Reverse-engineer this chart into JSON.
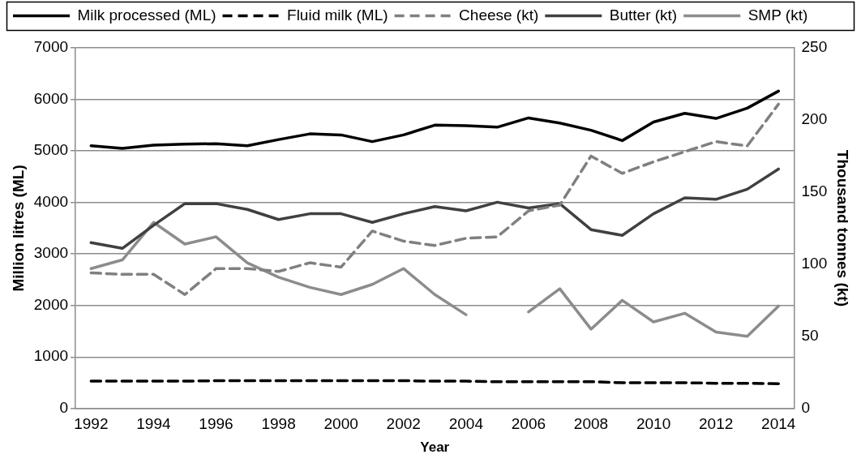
{
  "chart_data": {
    "type": "line",
    "xlabel": "Year",
    "ylabel": "Million litres (ML)",
    "y2label": "Thousand tonnes (kt)",
    "categories": [
      "1992",
      null,
      "1994",
      null,
      "1996",
      null,
      "1998",
      null,
      "2000",
      null,
      "2002",
      null,
      "2004",
      null,
      "2006",
      null,
      "2008",
      null,
      "2010",
      null,
      "2012",
      null,
      "2014"
    ],
    "ylim": [
      0,
      7000
    ],
    "yticks": [
      0,
      1000,
      2000,
      3000,
      4000,
      5000,
      6000,
      7000
    ],
    "y2lim": [
      0,
      250
    ],
    "y2ticks": [
      0,
      50,
      100,
      150,
      200,
      250
    ],
    "grid": "y",
    "legend": "top",
    "marker": "none",
    "series": [
      {
        "name": "Milk processed (ML)",
        "color": "#000000",
        "line_style": "solid",
        "values": [
          5100,
          5050,
          5110,
          5130,
          5140,
          5100,
          5220,
          5330,
          5310,
          5180,
          5310,
          5500,
          5490,
          5460,
          5640,
          5540,
          5400,
          5200,
          5560,
          5730,
          5630,
          5830,
          6160
        ]
      },
      {
        "name": "Fluid milk (ML)",
        "color": "#000000",
        "line_style": "dashed",
        "values": [
          530,
          530,
          530,
          530,
          540,
          540,
          540,
          540,
          540,
          540,
          540,
          530,
          530,
          520,
          520,
          520,
          520,
          500,
          500,
          500,
          490,
          490,
          480
        ]
      },
      {
        "name": "Cheese (kt)",
        "color": "#808080",
        "line_style": "dashed",
        "axis": "y2",
        "values": [
          94,
          93,
          93,
          79,
          97,
          97,
          95,
          101,
          98,
          123,
          116,
          113,
          118,
          119,
          137,
          141,
          175,
          163,
          171,
          178,
          185,
          182,
          211
        ]
      },
      {
        "name": "Butter (kt)",
        "color": "#404040",
        "line_style": "solid",
        "axis": "y2",
        "values": [
          115,
          111,
          127,
          142,
          142,
          138,
          131,
          135,
          135,
          129,
          135,
          140,
          137,
          143,
          139,
          142,
          124,
          120,
          135,
          146,
          145,
          152,
          166
        ]
      },
      {
        "name": "SMP (kt)",
        "color": "#8c8c8c",
        "line_style": "solid",
        "axis": "y2",
        "values": [
          97,
          103,
          129,
          114,
          119,
          101,
          91,
          84,
          79,
          86,
          97,
          79,
          65,
          null,
          67,
          83,
          55,
          75,
          60,
          66,
          53,
          50,
          71
        ]
      }
    ]
  }
}
